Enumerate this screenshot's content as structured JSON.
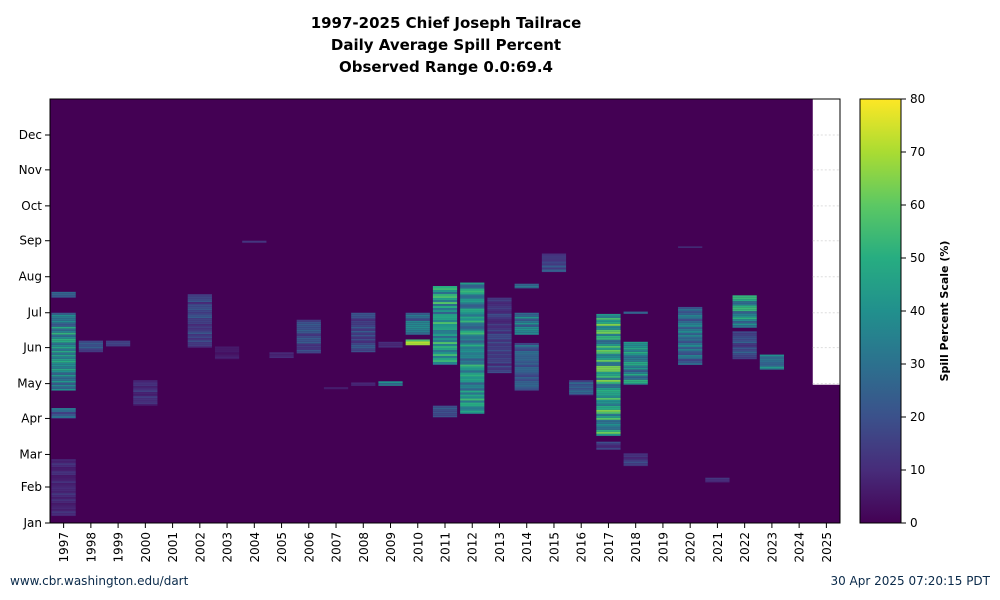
{
  "title_lines": [
    "1997-2025 Chief Joseph Tailrace",
    "Daily Average Spill Percent",
    "Observed Range 0.0:69.4"
  ],
  "footer": {
    "left": "www.cbr.washington.edu/dart",
    "right": "30 Apr 2025 07:20:15 PDT"
  },
  "colors": {
    "background": "#440154",
    "future": "#ffffff",
    "colormap": [
      "#440154",
      "#472c7a",
      "#3b518b",
      "#2c718e",
      "#21908d",
      "#27ad81",
      "#5cc863",
      "#aadc32",
      "#fde725"
    ]
  },
  "chart_data": {
    "type": "heatmap",
    "x_categories": [
      "1997",
      "1998",
      "1999",
      "2000",
      "2001",
      "2002",
      "2003",
      "2004",
      "2005",
      "2006",
      "2007",
      "2008",
      "2009",
      "2010",
      "2011",
      "2012",
      "2013",
      "2014",
      "2015",
      "2016",
      "2017",
      "2018",
      "2019",
      "2020",
      "2021",
      "2022",
      "2023",
      "2024",
      "2025"
    ],
    "y_tick_labels": [
      "Jan",
      "Feb",
      "Mar",
      "Apr",
      "May",
      "Jun",
      "Jul",
      "Aug",
      "Sep",
      "Oct",
      "Nov",
      "Dec"
    ],
    "y_ticks_doy": [
      1,
      32,
      60,
      91,
      121,
      152,
      182,
      213,
      244,
      274,
      305,
      335
    ],
    "y_range_doy": [
      1,
      366
    ],
    "last_observed_doy_2025": 120,
    "colorbar": {
      "label": "Spill Percent Scale (%)",
      "min": 0,
      "max": 80,
      "ticks": [
        0,
        10,
        20,
        30,
        40,
        50,
        60,
        70,
        80
      ]
    },
    "observed_range": [
      0.0,
      69.4
    ],
    "spill_bands": [
      {
        "year": "1997",
        "start": "Apr 01",
        "end": "Apr 10",
        "value": 25
      },
      {
        "year": "1997",
        "start": "Apr 25",
        "end": "Jul 01",
        "value": 40
      },
      {
        "year": "1997",
        "start": "Jul 14",
        "end": "Jul 19",
        "value": 28
      },
      {
        "year": "1997",
        "start": "Jan 07",
        "end": "Feb 25",
        "value": 10
      },
      {
        "year": "1998",
        "start": "May 28",
        "end": "Jun 07",
        "value": 20
      },
      {
        "year": "1999",
        "start": "Jun 02",
        "end": "Jun 07",
        "value": 15
      },
      {
        "year": "2000",
        "start": "Apr 12",
        "end": "May 04",
        "value": 12
      },
      {
        "year": "2002",
        "start": "Jun 01",
        "end": "Jul 17",
        "value": 18
      },
      {
        "year": "2003",
        "start": "May 22",
        "end": "Jun 02",
        "value": 6
      },
      {
        "year": "2004",
        "start": "Aug 30",
        "end": "Sep 01",
        "value": 10
      },
      {
        "year": "2005",
        "start": "May 23",
        "end": "May 28",
        "value": 8
      },
      {
        "year": "2006",
        "start": "May 27",
        "end": "Jun 25",
        "value": 20
      },
      {
        "year": "2007",
        "start": "Apr 26",
        "end": "Apr 28",
        "value": 5
      },
      {
        "year": "2008",
        "start": "May 28",
        "end": "Jul 01",
        "value": 18
      },
      {
        "year": "2008",
        "start": "Apr 29",
        "end": "May 02",
        "value": 10
      },
      {
        "year": "2009",
        "start": "Apr 29",
        "end": "May 03",
        "value": 32
      },
      {
        "year": "2009",
        "start": "Jun 01",
        "end": "Jun 06",
        "value": 12
      },
      {
        "year": "2010",
        "start": "Jun 03",
        "end": "Jun 08",
        "value": 55
      },
      {
        "year": "2010",
        "start": "Jun 12",
        "end": "Jul 01",
        "value": 30
      },
      {
        "year": "2011",
        "start": "May 17",
        "end": "Jul 24",
        "value": 45
      },
      {
        "year": "2011",
        "start": "Apr 02",
        "end": "Apr 12",
        "value": 20
      },
      {
        "year": "2012",
        "start": "Apr 05",
        "end": "Jul 27",
        "value": 42
      },
      {
        "year": "2013",
        "start": "May 10",
        "end": "Jul 14",
        "value": 15
      },
      {
        "year": "2014",
        "start": "Apr 25",
        "end": "Jun 05",
        "value": 25
      },
      {
        "year": "2014",
        "start": "Jun 12",
        "end": "Jul 01",
        "value": 35
      },
      {
        "year": "2014",
        "start": "Jul 22",
        "end": "Jul 26",
        "value": 28
      },
      {
        "year": "2015",
        "start": "Aug 05",
        "end": "Aug 21",
        "value": 20
      },
      {
        "year": "2016",
        "start": "Apr 21",
        "end": "May 04",
        "value": 22
      },
      {
        "year": "2017",
        "start": "Mar 17",
        "end": "Jun 30",
        "value": 50
      },
      {
        "year": "2017",
        "start": "Mar 05",
        "end": "Mar 12",
        "value": 15
      },
      {
        "year": "2018",
        "start": "Apr 30",
        "end": "Jun 06",
        "value": 40
      },
      {
        "year": "2018",
        "start": "Feb 19",
        "end": "Mar 02",
        "value": 15
      },
      {
        "year": "2018",
        "start": "Jun 30",
        "end": "Jul 02",
        "value": 30
      },
      {
        "year": "2020",
        "start": "May 17",
        "end": "Jul 06",
        "value": 30
      },
      {
        "year": "2020",
        "start": "Aug 26",
        "end": "Aug 27",
        "value": 15
      },
      {
        "year": "2021",
        "start": "Feb 05",
        "end": "Feb 09",
        "value": 10
      },
      {
        "year": "2022",
        "start": "Jun 18",
        "end": "Jul 16",
        "value": 42
      },
      {
        "year": "2022",
        "start": "May 22",
        "end": "Jun 15",
        "value": 20
      },
      {
        "year": "2023",
        "start": "May 13",
        "end": "May 26",
        "value": 35
      }
    ]
  }
}
